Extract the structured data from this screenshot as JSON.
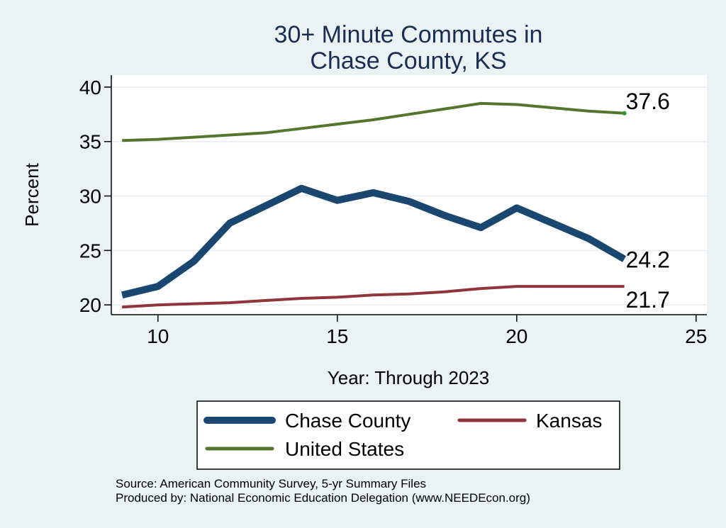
{
  "chart_data": {
    "type": "line",
    "title_lines": [
      "30+ Minute Commutes in",
      "Chase County, KS"
    ],
    "xlabel": "Year: Through 2023",
    "ylabel": "Percent",
    "xlim": [
      8.7,
      25.3
    ],
    "ylim": [
      19.1,
      41.1
    ],
    "xticks": [
      10,
      15,
      20,
      25
    ],
    "yticks": [
      20,
      25,
      30,
      35,
      40
    ],
    "grid": true,
    "series": [
      {
        "name": "Chase County",
        "color": "#1a476f",
        "x": [
          9,
          10,
          11,
          12,
          13,
          14,
          15,
          16,
          17,
          18,
          19,
          20,
          21,
          22,
          23
        ],
        "values": [
          20.9,
          21.7,
          24.0,
          27.5,
          29.1,
          30.7,
          29.6,
          30.3,
          29.5,
          28.2,
          27.1,
          28.9,
          27.5,
          26.1,
          24.2
        ],
        "end_label": "24.2"
      },
      {
        "name": "Kansas",
        "color": "#90353b",
        "x": [
          9,
          10,
          11,
          12,
          13,
          14,
          15,
          16,
          17,
          18,
          19,
          20,
          21,
          22,
          23
        ],
        "values": [
          19.8,
          20.0,
          20.1,
          20.2,
          20.4,
          20.6,
          20.7,
          20.9,
          21.0,
          21.2,
          21.5,
          21.7,
          21.7,
          21.7,
          21.7
        ],
        "end_label": "21.7"
      },
      {
        "name": "United States",
        "color": "#55752f",
        "x": [
          9,
          10,
          11,
          12,
          13,
          14,
          15,
          16,
          17,
          18,
          19,
          20,
          21,
          22,
          23
        ],
        "values": [
          35.1,
          35.2,
          35.4,
          35.6,
          35.8,
          36.2,
          36.6,
          37.0,
          37.5,
          38.0,
          38.5,
          38.4,
          38.1,
          37.8,
          37.6
        ],
        "end_label": "37.6"
      }
    ],
    "legend_order": [
      "Chase County",
      "Kansas",
      "United States"
    ],
    "legend_position": "bottom"
  },
  "source": {
    "line1": "Source: American Community Survey, 5-yr Summary Files",
    "line2": "Produced by: National Economic Education Delegation (www.NEEDEcon.org)"
  }
}
